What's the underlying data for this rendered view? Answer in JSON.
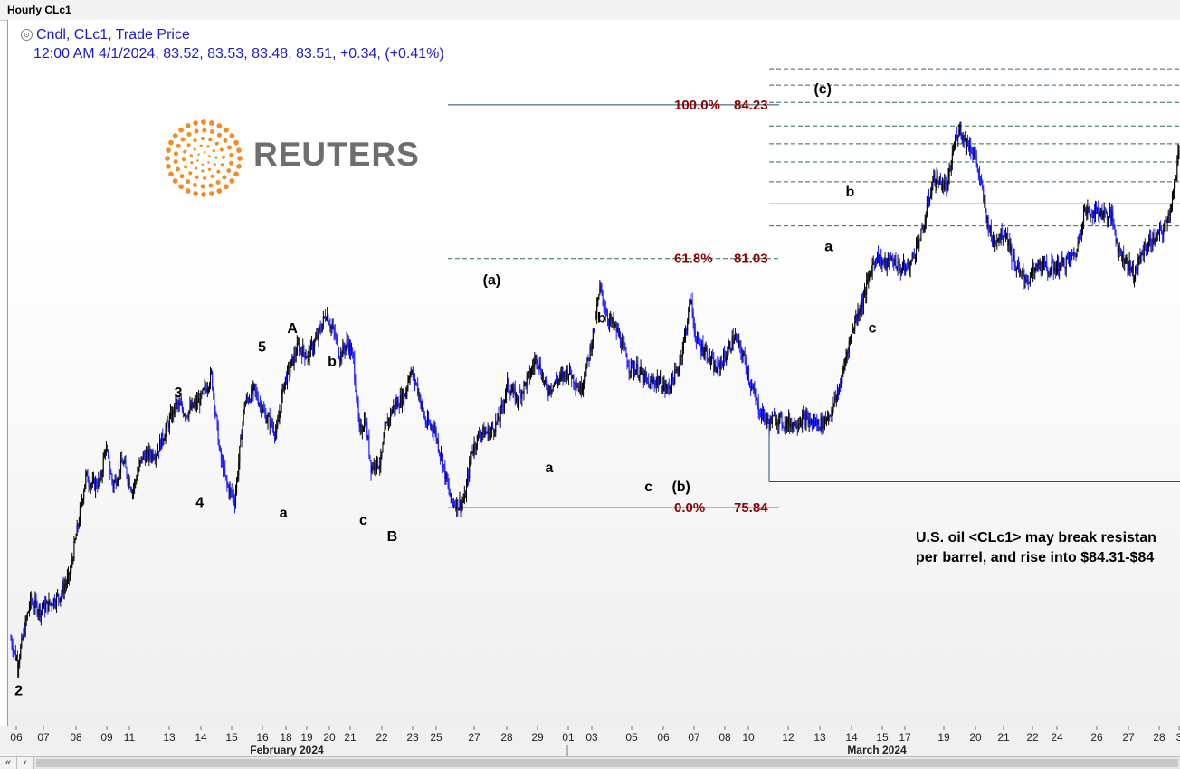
{
  "window": {
    "title": "Hourly CLc1"
  },
  "legend": {
    "line1": "Cndl, CLc1, Trade Price",
    "line2": "12:00 AM 4/1/2024, 83.52, 83.53, 83.48, 83.51, +0.34, (+0.41%)"
  },
  "logo": {
    "text": "REUTERS"
  },
  "annotation": {
    "line1": "U.S. oil <CLc1> may break resistan",
    "line2": "per barrel, and rise into $84.31-$84"
  },
  "colors": {
    "up_candle": "#000000",
    "down_candle": "#1a1aff",
    "fib_label": "#8b0000",
    "fib_line": "#1f4e79",
    "fib_dash": "#2e6b4f"
  },
  "chart_data": {
    "type": "candlestick",
    "symbol": "CLc1",
    "interval": "Hourly",
    "y_range": [
      71.3,
      86.0
    ],
    "x_ticks": [
      "06",
      "07",
      "08",
      "09",
      "11",
      "13",
      "14",
      "15",
      "16",
      "18",
      "19",
      "20",
      "21",
      "22",
      "23",
      "25",
      "27",
      "28",
      "29",
      "01",
      "03",
      "05",
      "06",
      "07",
      "08",
      "10",
      "12",
      "13",
      "14",
      "15",
      "17",
      "19",
      "20",
      "21",
      "22",
      "24",
      "26",
      "27",
      "28",
      "3"
    ],
    "month_labels": [
      "February 2024",
      "March 2024"
    ],
    "price_path": [
      [
        0.0,
        73.1
      ],
      [
        0.7,
        72.6
      ],
      [
        2.0,
        73.9
      ],
      [
        3.0,
        73.7
      ],
      [
        5.0,
        74.0
      ],
      [
        6.0,
        74.4
      ],
      [
        7.0,
        75.6
      ],
      [
        7.7,
        76.5
      ],
      [
        8.4,
        76.3
      ],
      [
        9.2,
        76.4
      ],
      [
        9.7,
        77.1
      ],
      [
        10.5,
        76.3
      ],
      [
        11.5,
        76.8
      ],
      [
        12.5,
        76.2
      ],
      [
        13.5,
        76.9
      ],
      [
        15.0,
        77.0
      ],
      [
        16.0,
        77.5
      ],
      [
        17.0,
        78.0
      ],
      [
        18.0,
        77.8
      ],
      [
        19.5,
        78.1
      ],
      [
        20.6,
        78.6
      ],
      [
        21.5,
        76.9
      ],
      [
        22.2,
        76.3
      ],
      [
        23.0,
        76.0
      ],
      [
        24.0,
        78.0
      ],
      [
        25.0,
        78.3
      ],
      [
        26.0,
        77.8
      ],
      [
        27.3,
        77.4
      ],
      [
        28.0,
        78.4
      ],
      [
        29.5,
        79.2
      ],
      [
        30.5,
        79.0
      ],
      [
        31.5,
        79.4
      ],
      [
        32.4,
        79.9
      ],
      [
        33.3,
        79.4
      ],
      [
        33.8,
        79.0
      ],
      [
        34.6,
        79.3
      ],
      [
        35.2,
        78.9
      ],
      [
        35.8,
        77.4
      ],
      [
        36.4,
        77.7
      ],
      [
        37.0,
        76.7
      ],
      [
        38.0,
        76.8
      ],
      [
        38.5,
        77.5
      ],
      [
        39.2,
        77.9
      ],
      [
        40.5,
        78.2
      ],
      [
        41.0,
        78.7
      ],
      [
        41.7,
        78.4
      ],
      [
        42.6,
        77.6
      ],
      [
        43.5,
        77.5
      ],
      [
        44.3,
        76.8
      ],
      [
        45.2,
        76.0
      ],
      [
        46.0,
        75.9
      ],
      [
        46.6,
        76.0
      ],
      [
        47.3,
        77.0
      ],
      [
        48.2,
        77.4
      ],
      [
        49.2,
        77.4
      ],
      [
        50.2,
        77.7
      ],
      [
        51.0,
        78.4
      ],
      [
        52.0,
        78.1
      ],
      [
        53.3,
        78.6
      ],
      [
        54.0,
        79.0
      ],
      [
        55.0,
        78.3
      ],
      [
        56.3,
        78.5
      ],
      [
        57.3,
        78.7
      ],
      [
        58.5,
        78.3
      ],
      [
        59.3,
        78.9
      ],
      [
        60.0,
        79.7
      ],
      [
        60.5,
        80.4
      ],
      [
        61.3,
        79.8
      ],
      [
        62.3,
        79.5
      ],
      [
        63.5,
        78.8
      ],
      [
        64.5,
        78.7
      ],
      [
        65.5,
        78.4
      ],
      [
        66.4,
        78.5
      ],
      [
        67.4,
        78.3
      ],
      [
        68.5,
        78.7
      ],
      [
        69.3,
        79.5
      ],
      [
        69.8,
        80.2
      ],
      [
        70.4,
        79.3
      ],
      [
        71.4,
        79.1
      ],
      [
        72.4,
        78.7
      ],
      [
        73.4,
        79.0
      ],
      [
        74.3,
        79.4
      ],
      [
        75.0,
        79.1
      ],
      [
        75.4,
        78.9
      ],
      [
        76.0,
        78.4
      ],
      [
        76.8,
        77.9
      ],
      [
        77.8,
        77.6
      ],
      [
        78.6,
        77.7
      ],
      [
        79.5,
        77.6
      ],
      [
        80.4,
        77.6
      ],
      [
        81.4,
        77.7
      ],
      [
        82.3,
        77.6
      ],
      [
        83.4,
        77.6
      ],
      [
        84.4,
        77.9
      ],
      [
        85.3,
        78.5
      ],
      [
        86.0,
        79.2
      ],
      [
        86.8,
        79.8
      ],
      [
        87.6,
        80.2
      ],
      [
        88.2,
        80.7
      ],
      [
        88.9,
        81.1
      ],
      [
        89.8,
        80.9
      ],
      [
        90.6,
        81.0
      ],
      [
        91.5,
        80.8
      ],
      [
        92.4,
        80.9
      ],
      [
        93.0,
        81.3
      ],
      [
        93.7,
        81.6
      ],
      [
        94.2,
        82.2
      ],
      [
        94.8,
        82.7
      ],
      [
        95.5,
        82.6
      ],
      [
        96.2,
        82.5
      ],
      [
        96.8,
        83.3
      ],
      [
        97.4,
        83.8
      ],
      [
        97.9,
        83.5
      ],
      [
        98.4,
        83.4
      ],
      [
        99.0,
        83.2
      ],
      [
        99.7,
        82.5
      ],
      [
        100.2,
        81.9
      ],
      [
        100.8,
        81.4
      ],
      [
        101.5,
        81.5
      ],
      [
        102.2,
        81.6
      ],
      [
        102.8,
        81.1
      ],
      [
        103.6,
        80.7
      ],
      [
        104.6,
        80.6
      ],
      [
        105.6,
        80.9
      ],
      [
        106.6,
        80.8
      ],
      [
        107.8,
        80.9
      ],
      [
        108.8,
        81.0
      ],
      [
        109.5,
        81.2
      ],
      [
        110.2,
        82.0
      ],
      [
        110.9,
        82.0
      ],
      [
        112.0,
        82.0
      ],
      [
        113.1,
        81.9
      ],
      [
        113.8,
        81.2
      ],
      [
        114.5,
        81.0
      ],
      [
        115.4,
        80.7
      ],
      [
        116.3,
        81.2
      ],
      [
        117.2,
        81.4
      ],
      [
        118.3,
        81.6
      ],
      [
        119.0,
        82.0
      ],
      [
        119.7,
        82.7
      ],
      [
        120.0,
        83.4
      ]
    ],
    "fibonacci_labels": [
      {
        "level": "100.0%",
        "price": "84.23"
      },
      {
        "level": "61.8%",
        "price": "81.03"
      },
      {
        "level": "0.0%",
        "price": "75.84"
      }
    ],
    "wave_labels": [
      "2",
      "3",
      "4",
      "5",
      "A",
      "a",
      "b",
      "c",
      "B",
      "(a)",
      "a",
      "b",
      "c",
      "(b)",
      "(c)",
      "a",
      "b",
      "c"
    ]
  }
}
